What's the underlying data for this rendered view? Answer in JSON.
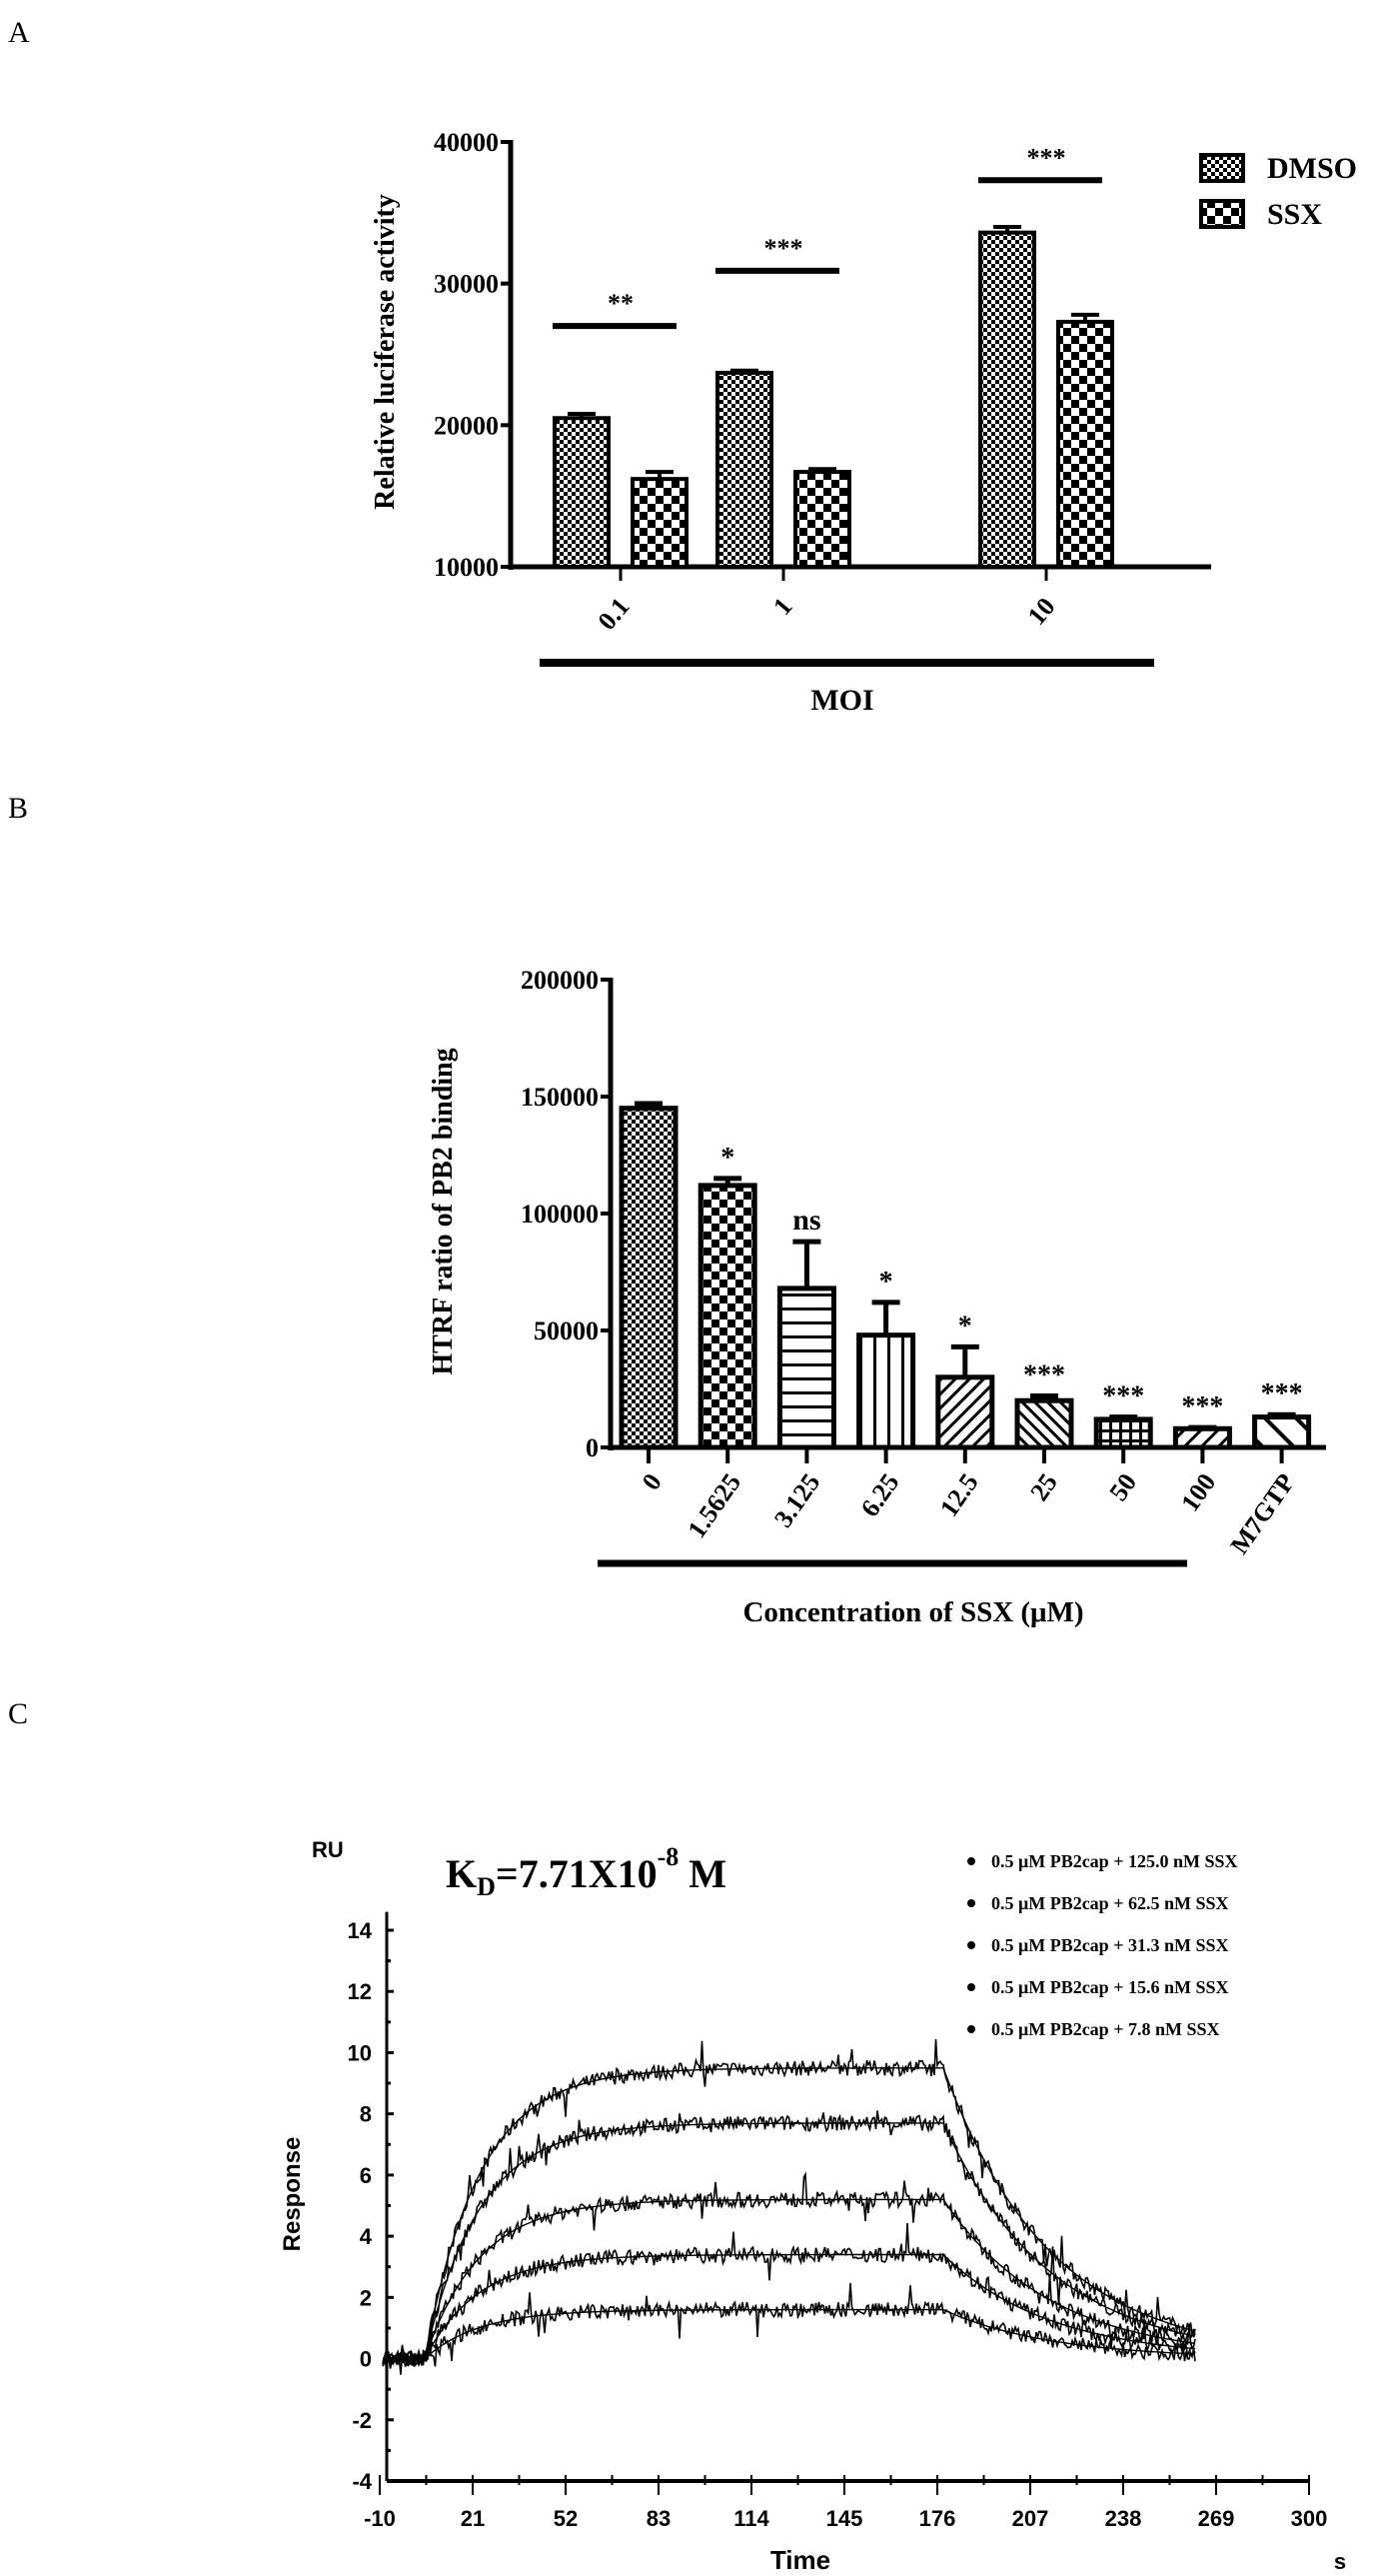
{
  "panels": {
    "a": "A",
    "b": "B",
    "c": "C"
  },
  "chart_data": [
    {
      "type": "bar",
      "title": "",
      "xlabel": "MOI",
      "ylabel": "Relative luciferase activity",
      "ylim": [
        10000,
        40000
      ],
      "yticks": [
        "10000",
        "20000",
        "30000",
        "40000"
      ],
      "categories": [
        "0.1",
        "1",
        "10"
      ],
      "legend_position": "top-right",
      "series": [
        {
          "name": "DMSO",
          "values": [
            20500,
            23700,
            33600
          ],
          "errors": [
            300,
            150,
            400
          ]
        },
        {
          "name": "SSX",
          "values": [
            16200,
            16700,
            27300
          ],
          "errors": [
            500,
            200,
            500
          ]
        }
      ],
      "significance": [
        {
          "label": "**",
          "level": 27000
        },
        {
          "label": "***",
          "level": 30900
        },
        {
          "label": "***",
          "level": 37300
        }
      ]
    },
    {
      "type": "bar",
      "title": "",
      "xlabel": "Concentration of SSX (μM)",
      "ylabel": "HTRF ratio of PB2 binding",
      "ylim": [
        0,
        200000
      ],
      "yticks": [
        "0",
        "50000",
        "100000",
        "150000",
        "200000"
      ],
      "categories": [
        "0",
        "1.5625",
        "3.125",
        "6.25",
        "12.5",
        "25",
        "50",
        "100",
        "M7GTP"
      ],
      "values": [
        145000,
        112000,
        68000,
        48000,
        30000,
        20000,
        12000,
        8000,
        13000
      ],
      "errors": [
        2000,
        3000,
        20000,
        14000,
        13000,
        2000,
        1000,
        500,
        1000
      ],
      "significance": [
        "",
        "*",
        "ns",
        "*",
        "*",
        "***",
        "***",
        "***",
        "***"
      ]
    },
    {
      "type": "line",
      "title": "K",
      "title_sub": "D",
      "title_rest": "=7.71X10",
      "title_exp": "-8",
      "title_unit": " M",
      "xlabel": "Time",
      "xunit": "s",
      "ylabel": "Response",
      "yunit": "RU",
      "xlim": [
        -10,
        300
      ],
      "ylim": [
        -4,
        14
      ],
      "xticks": [
        "-10",
        "21",
        "52",
        "83",
        "114",
        "145",
        "176",
        "207",
        "238",
        "269",
        "300"
      ],
      "yticks": [
        "-4",
        "-2",
        "0",
        "2",
        "4",
        "6",
        "8",
        "10",
        "12",
        "14"
      ],
      "injection_start": 5,
      "injection_end": 178,
      "run_end": 262,
      "legend_position": "top-right",
      "series": [
        {
          "name": "0.5 μM PB2cap + 125.0 nM SSX",
          "plateau": 9.5
        },
        {
          "name": "0.5 μM PB2cap + 62.5 nM SSX",
          "plateau": 7.7
        },
        {
          "name": "0.5 μM PB2cap + 31.3 nM SSX",
          "plateau": 5.2
        },
        {
          "name": "0.5 μM PB2cap + 15.6 nM SSX",
          "plateau": 3.4
        },
        {
          "name": "0.5 μM PB2cap + 7.8 nM SSX",
          "plateau": 1.6
        }
      ]
    }
  ]
}
